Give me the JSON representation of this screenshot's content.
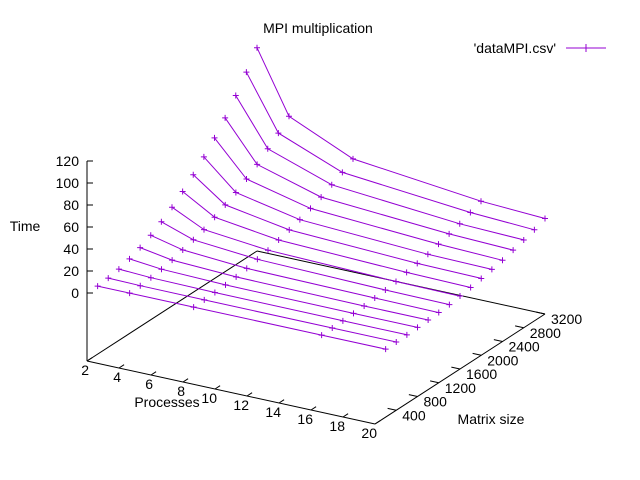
{
  "chart_data": {
    "type": "surface-3d-lines",
    "title": "MPI multiplication",
    "legend": {
      "label": "'dataMPI.csv'",
      "placement": "top-right"
    },
    "series_color": "#9400D3",
    "xlabel": "Processes",
    "ylabel": "Matrix size",
    "zlabel": "Time",
    "xlim": [
      2,
      20
    ],
    "ylim": [
      0,
      3200
    ],
    "zlim": [
      0,
      120
    ],
    "x_ticks": [
      "2",
      "4",
      "6",
      "8",
      "10",
      "12",
      "14",
      "16",
      "18",
      "20"
    ],
    "y_ticks": [
      "400",
      "800",
      "1200",
      "1600",
      "2000",
      "2400",
      "2800",
      "3200"
    ],
    "z_ticks": [
      "0",
      "20",
      "40",
      "60",
      "80",
      "100",
      "120"
    ],
    "x": [
      2,
      4,
      8,
      16,
      20
    ],
    "series": [
      {
        "matrix_size": 200,
        "values": [
          0,
          0,
          0,
          0,
          0
        ]
      },
      {
        "matrix_size": 400,
        "values": [
          1,
          0.5,
          0.3,
          0.2,
          0.2
        ]
      },
      {
        "matrix_size": 600,
        "values": [
          3,
          1.5,
          0.8,
          0.5,
          0.5
        ]
      },
      {
        "matrix_size": 800,
        "values": [
          6,
          3,
          1.5,
          1,
          1
        ]
      },
      {
        "matrix_size": 1000,
        "values": [
          10,
          5,
          2.5,
          1.5,
          1.5
        ]
      },
      {
        "matrix_size": 1200,
        "values": [
          15,
          8,
          4,
          2.5,
          2
        ]
      },
      {
        "matrix_size": 1400,
        "values": [
          21,
          11,
          6,
          3.5,
          3
        ]
      },
      {
        "matrix_size": 1600,
        "values": [
          28,
          14,
          8,
          5,
          4.5
        ]
      },
      {
        "matrix_size": 1800,
        "values": [
          36,
          19,
          11,
          7,
          6
        ]
      },
      {
        "matrix_size": 2000,
        "values": [
          45,
          24,
          14,
          9,
          8
        ]
      },
      {
        "matrix_size": 2200,
        "values": [
          55,
          29,
          17,
          11,
          10
        ]
      },
      {
        "matrix_size": 2400,
        "values": [
          66,
          35,
          21,
          14,
          12
        ]
      },
      {
        "matrix_size": 2600,
        "values": [
          78,
          42,
          25,
          17,
          15
        ]
      },
      {
        "matrix_size": 2800,
        "values": [
          92,
          50,
          30,
          20,
          18
        ]
      },
      {
        "matrix_size": 3000,
        "values": [
          107,
          58,
          35,
          24,
          21
        ]
      },
      {
        "matrix_size": 3200,
        "values": [
          123,
          67,
          41,
          28,
          25
        ]
      }
    ]
  }
}
